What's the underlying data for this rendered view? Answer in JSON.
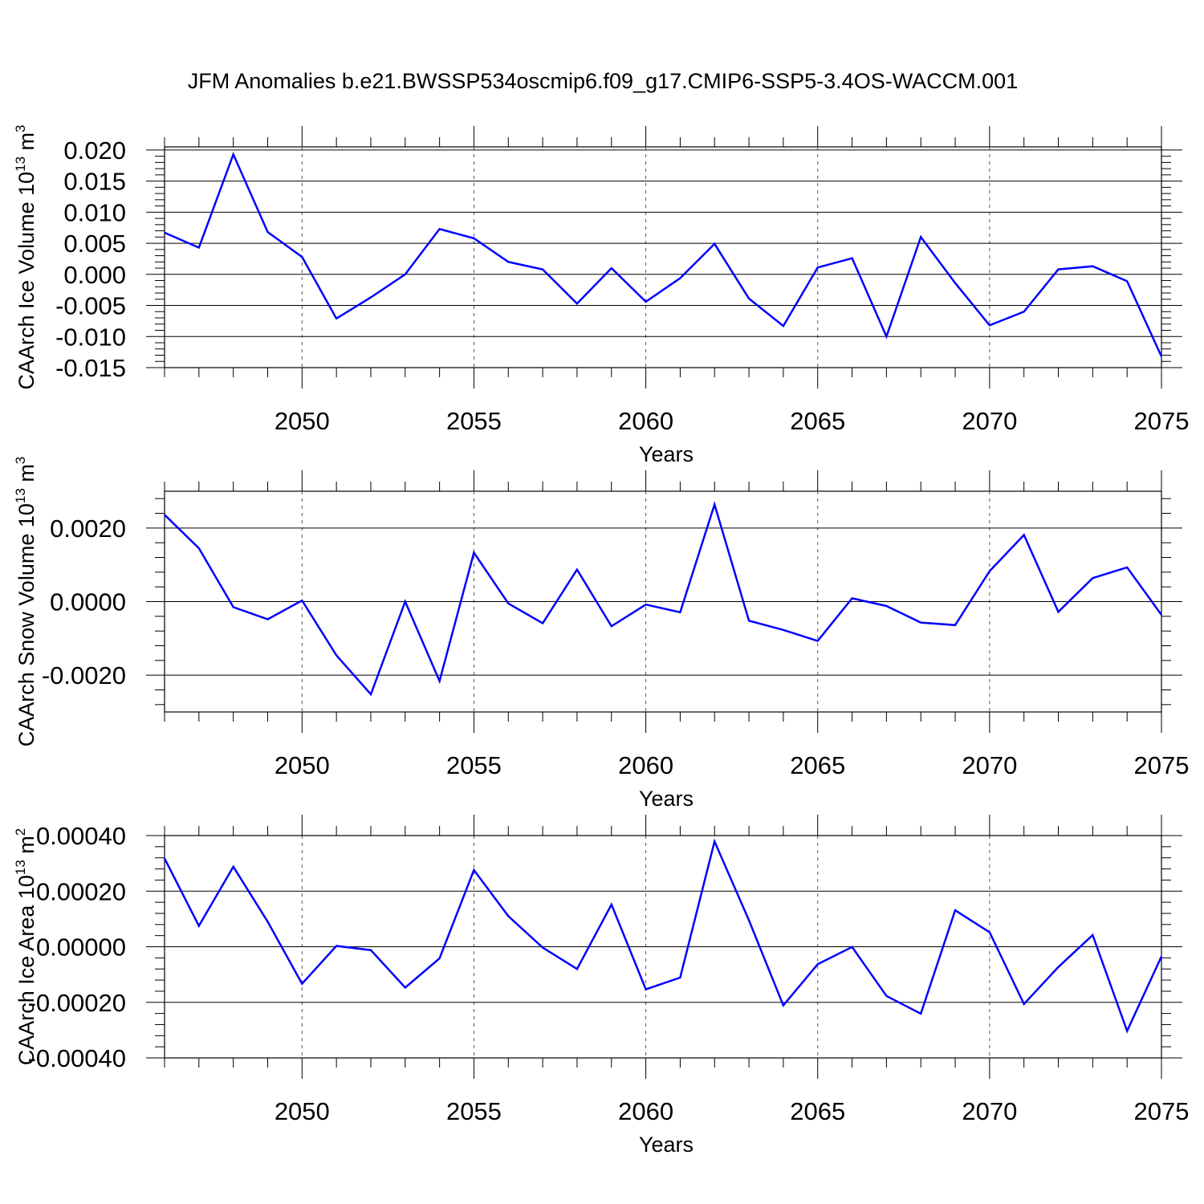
{
  "title": "JFM Anomalies b.e21.BWSSP534oscmip6.f09_g17.CMIP6-SSP5-3.4OS-WACCM.001",
  "line_color": "#0000ff",
  "chart_data": [
    {
      "type": "line",
      "name": "ice-volume",
      "ylabel": "CAArch Ice Volume 10",
      "ylabel_sup": "13",
      "ylabel_unit": " m",
      "ylabel_unit_sup": "3",
      "xlabel": "Years",
      "xlim": [
        2046,
        2075
      ],
      "ylim": [
        -0.015,
        0.0205
      ],
      "yticks": [
        -0.015,
        -0.01,
        -0.005,
        0.0,
        0.005,
        0.01,
        0.015,
        0.02
      ],
      "ytick_labels": [
        "-0.015",
        "-0.010",
        "-0.005",
        "0.000",
        "0.005",
        "0.010",
        "0.015",
        "0.020"
      ],
      "xticks": [
        2050,
        2055,
        2060,
        2065,
        2070,
        2075
      ],
      "xtick_labels": [
        "2050",
        "2055",
        "2060",
        "2065",
        "2070",
        "2075"
      ],
      "x": [
        2046,
        2047,
        2048,
        2049,
        2050,
        2051,
        2052,
        2053,
        2054,
        2055,
        2056,
        2057,
        2058,
        2059,
        2060,
        2061,
        2062,
        2063,
        2064,
        2065,
        2066,
        2067,
        2068,
        2069,
        2070,
        2071,
        2072,
        2073,
        2074,
        2075
      ],
      "values": [
        0.0067,
        0.0043,
        0.0193,
        0.0068,
        0.0028,
        -0.0071,
        -0.0037,
        0.0,
        0.0073,
        0.0058,
        0.002,
        0.0008,
        -0.0047,
        0.001,
        -0.0044,
        -0.0006,
        0.0049,
        -0.0039,
        -0.0083,
        0.0011,
        0.0026,
        -0.01,
        0.006,
        -0.0014,
        -0.0082,
        -0.006,
        0.0008,
        0.0013,
        -0.0011,
        -0.0132
      ]
    },
    {
      "type": "line",
      "name": "snow-volume",
      "ylabel": "CAArch Snow Volume 10",
      "ylabel_sup": "13",
      "ylabel_unit": " m",
      "ylabel_unit_sup": "3",
      "xlabel": "Years",
      "xlim": [
        2046,
        2075
      ],
      "ylim": [
        -0.003,
        0.003
      ],
      "yticks": [
        -0.002,
        0.0,
        0.002
      ],
      "ytick_labels": [
        "-0.0020",
        "0.0000",
        "0.0020"
      ],
      "xticks": [
        2050,
        2055,
        2060,
        2065,
        2070,
        2075
      ],
      "xtick_labels": [
        "2050",
        "2055",
        "2060",
        "2065",
        "2070",
        "2075"
      ],
      "x": [
        2046,
        2047,
        2048,
        2049,
        2050,
        2051,
        2052,
        2053,
        2054,
        2055,
        2056,
        2057,
        2058,
        2059,
        2060,
        2061,
        2062,
        2063,
        2064,
        2065,
        2066,
        2067,
        2068,
        2069,
        2070,
        2071,
        2072,
        2073,
        2074,
        2075
      ],
      "values": [
        0.00236,
        0.00145,
        -0.00015,
        -0.00048,
        3e-05,
        -0.00146,
        -0.00252,
        0.0,
        -0.00216,
        0.00133,
        -5e-05,
        -0.00059,
        0.00087,
        -0.00067,
        -8e-05,
        -0.00029,
        0.00264,
        -0.00052,
        -0.00077,
        -0.00107,
        9e-05,
        -0.00012,
        -0.00057,
        -0.00064,
        0.00083,
        0.00181,
        -0.00028,
        0.00064,
        0.00093,
        -0.00036
      ]
    },
    {
      "type": "line",
      "name": "ice-area",
      "ylabel": "CAArch Ice Area 10",
      "ylabel_sup": "13",
      "ylabel_unit": " m",
      "ylabel_unit_sup": "2",
      "xlabel": "Years",
      "xlim": [
        2046,
        2075
      ],
      "ylim": [
        -0.0004,
        0.0004
      ],
      "yticks": [
        -0.0004,
        -0.0002,
        0.0,
        0.0002,
        0.0004
      ],
      "ytick_labels": [
        "-0.00040",
        "-0.00020",
        "0.00000",
        "0.00020",
        "0.00040"
      ],
      "xticks": [
        2050,
        2055,
        2060,
        2065,
        2070,
        2075
      ],
      "xtick_labels": [
        "2050",
        "2055",
        "2060",
        "2065",
        "2070",
        "2075"
      ],
      "x": [
        2046,
        2047,
        2048,
        2049,
        2050,
        2051,
        2052,
        2053,
        2054,
        2055,
        2056,
        2057,
        2058,
        2059,
        2060,
        2061,
        2062,
        2063,
        2064,
        2065,
        2066,
        2067,
        2068,
        2069,
        2070,
        2071,
        2072,
        2073,
        2074,
        2075
      ],
      "values": [
        0.000318,
        7.5e-05,
        0.000288,
        9e-05,
        -0.000133,
        3e-06,
        -1.2e-05,
        -0.000147,
        -4.2e-05,
        0.000276,
        0.00011,
        -3e-06,
        -8e-05,
        0.000152,
        -0.000153,
        -0.000111,
        0.000379,
        9.5e-05,
        -0.000211,
        -6.3e-05,
        -1e-06,
        -0.000177,
        -0.000241,
        0.000131,
        5.2e-05,
        -0.000206,
        -7.3e-05,
        4.2e-05,
        -0.000303,
        -3.5e-05
      ]
    }
  ]
}
